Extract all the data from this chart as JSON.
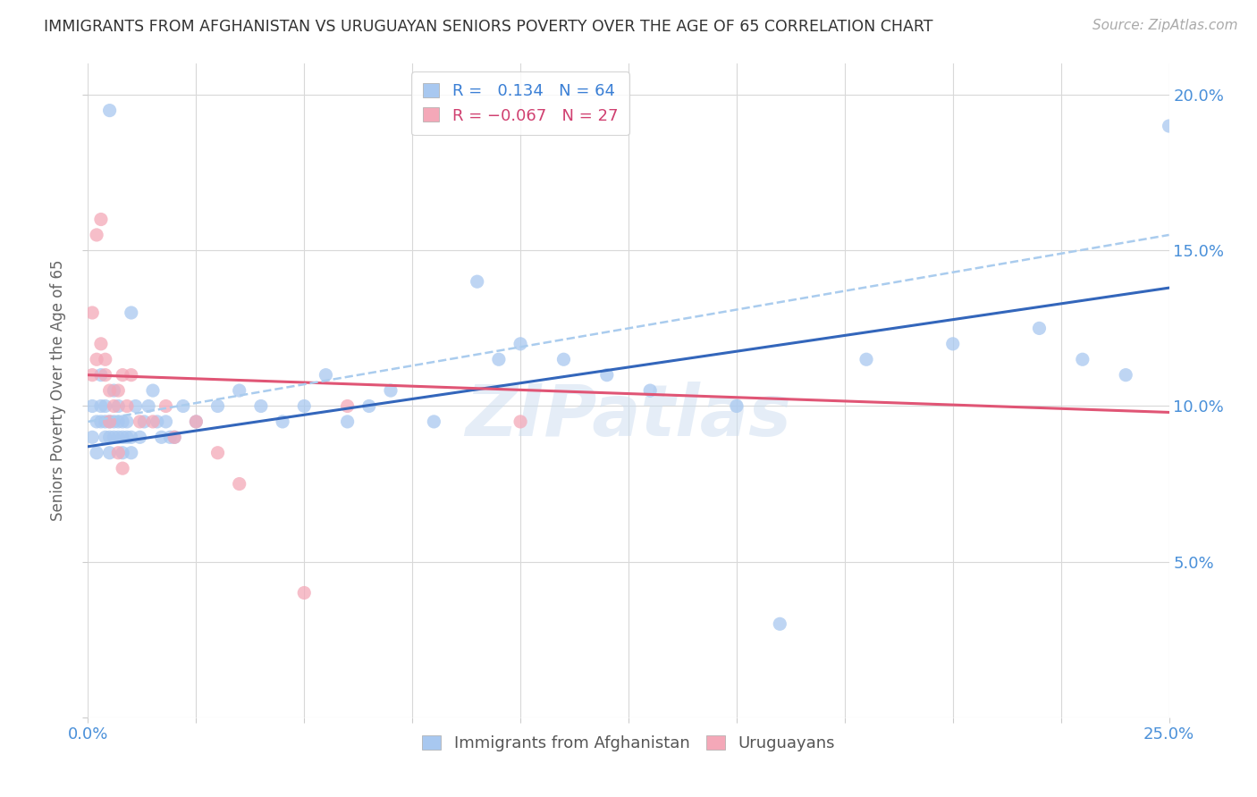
{
  "title": "IMMIGRANTS FROM AFGHANISTAN VS URUGUAYAN SENIORS POVERTY OVER THE AGE OF 65 CORRELATION CHART",
  "source": "Source: ZipAtlas.com",
  "ylabel": "Seniors Poverty Over the Age of 65",
  "x_min": 0.0,
  "x_max": 0.25,
  "y_min": 0.0,
  "y_max": 0.21,
  "legend_R1": " 0.134",
  "legend_N1": "64",
  "legend_R2": "-0.067",
  "legend_N2": "27",
  "color_blue": "#a8c8f0",
  "color_pink": "#f4a8b8",
  "color_blue_line": "#3366bb",
  "color_pink_line": "#e05575",
  "color_pink_dashed": "#aaccee",
  "watermark": "ZIPatlas",
  "blue_scatter_x": [
    0.001,
    0.001,
    0.002,
    0.002,
    0.003,
    0.003,
    0.003,
    0.004,
    0.004,
    0.004,
    0.005,
    0.005,
    0.005,
    0.006,
    0.006,
    0.006,
    0.007,
    0.007,
    0.007,
    0.008,
    0.008,
    0.008,
    0.009,
    0.009,
    0.01,
    0.01,
    0.01,
    0.011,
    0.012,
    0.013,
    0.014,
    0.015,
    0.016,
    0.017,
    0.018,
    0.019,
    0.02,
    0.022,
    0.025,
    0.03,
    0.035,
    0.04,
    0.045,
    0.05,
    0.055,
    0.06,
    0.065,
    0.07,
    0.08,
    0.09,
    0.095,
    0.1,
    0.11,
    0.12,
    0.13,
    0.15,
    0.16,
    0.18,
    0.2,
    0.22,
    0.23,
    0.24,
    0.25,
    0.005
  ],
  "blue_scatter_y": [
    0.1,
    0.09,
    0.085,
    0.095,
    0.095,
    0.1,
    0.11,
    0.09,
    0.095,
    0.1,
    0.085,
    0.09,
    0.095,
    0.09,
    0.095,
    0.105,
    0.09,
    0.095,
    0.1,
    0.085,
    0.09,
    0.095,
    0.09,
    0.095,
    0.085,
    0.09,
    0.13,
    0.1,
    0.09,
    0.095,
    0.1,
    0.105,
    0.095,
    0.09,
    0.095,
    0.09,
    0.09,
    0.1,
    0.095,
    0.1,
    0.105,
    0.1,
    0.095,
    0.1,
    0.11,
    0.095,
    0.1,
    0.105,
    0.095,
    0.14,
    0.115,
    0.12,
    0.115,
    0.11,
    0.105,
    0.1,
    0.03,
    0.115,
    0.12,
    0.125,
    0.115,
    0.11,
    0.19,
    0.195
  ],
  "pink_scatter_x": [
    0.001,
    0.001,
    0.002,
    0.002,
    0.003,
    0.003,
    0.004,
    0.004,
    0.005,
    0.005,
    0.006,
    0.007,
    0.007,
    0.008,
    0.008,
    0.009,
    0.01,
    0.012,
    0.015,
    0.018,
    0.02,
    0.025,
    0.03,
    0.035,
    0.05,
    0.06,
    0.1
  ],
  "pink_scatter_y": [
    0.13,
    0.11,
    0.155,
    0.115,
    0.16,
    0.12,
    0.115,
    0.11,
    0.105,
    0.095,
    0.1,
    0.105,
    0.085,
    0.11,
    0.08,
    0.1,
    0.11,
    0.095,
    0.095,
    0.1,
    0.09,
    0.095,
    0.085,
    0.075,
    0.04,
    0.1,
    0.095
  ],
  "blue_line_x0": 0.0,
  "blue_line_x1": 0.25,
  "blue_line_y0": 0.087,
  "blue_line_y1": 0.138,
  "pink_line_x0": 0.0,
  "pink_line_x1": 0.25,
  "pink_line_y0": 0.11,
  "pink_line_y1": 0.098,
  "dashed_line_x0": 0.0,
  "dashed_line_x1": 0.25,
  "dashed_line_y0": 0.095,
  "dashed_line_y1": 0.155
}
